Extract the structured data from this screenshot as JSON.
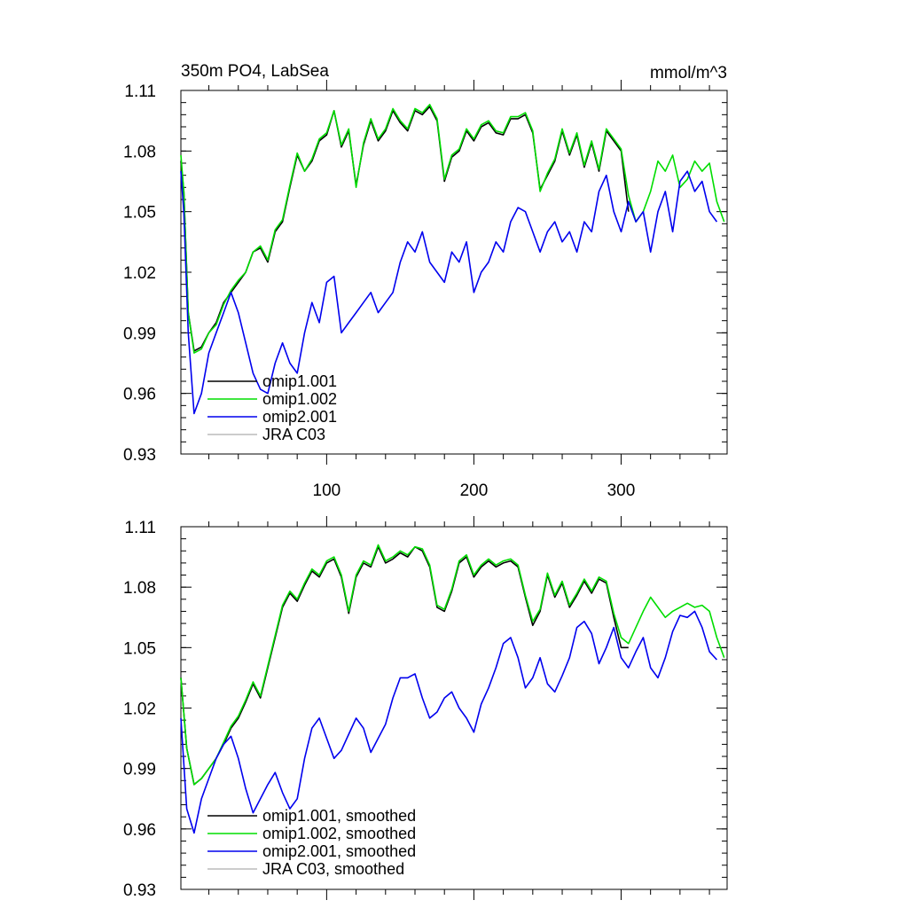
{
  "chart_data": [
    {
      "type": "line",
      "title": "350m PO4, LabSea",
      "units": "mmol/m^3",
      "xlim": [
        1,
        372
      ],
      "ylim": [
        0.93,
        1.11
      ],
      "xticks": [
        100,
        200,
        300
      ],
      "xtick_labels": [
        "100",
        "200",
        "300"
      ],
      "yticks": [
        0.93,
        0.96,
        0.99,
        1.02,
        1.05,
        1.08,
        1.11
      ],
      "ytick_labels": [
        "0.93",
        "0.96",
        "0.99",
        "1.02",
        "1.05",
        "1.08",
        "1.11"
      ],
      "legend_position": "bottom-left",
      "series": [
        {
          "name": "omip1.001",
          "color": "#000000",
          "x": [
            1,
            3,
            6,
            10,
            15,
            20,
            25,
            30,
            35,
            40,
            45,
            50,
            55,
            60,
            65,
            70,
            75,
            80,
            85,
            90,
            95,
            100,
            105,
            110,
            115,
            120,
            125,
            130,
            135,
            140,
            145,
            150,
            155,
            160,
            165,
            170,
            175,
            180,
            185,
            190,
            195,
            200,
            205,
            210,
            215,
            220,
            225,
            230,
            235,
            240,
            245,
            250,
            255,
            260,
            265,
            270,
            275,
            280,
            285,
            290,
            295,
            300,
            305
          ],
          "y": [
            1.075,
            1.06,
            1.0,
            0.981,
            0.983,
            0.99,
            0.995,
            1.005,
            1.01,
            1.015,
            1.02,
            1.03,
            1.032,
            1.025,
            1.04,
            1.045,
            1.062,
            1.078,
            1.07,
            1.075,
            1.085,
            1.088,
            1.1,
            1.082,
            1.09,
            1.063,
            1.083,
            1.095,
            1.085,
            1.09,
            1.1,
            1.094,
            1.09,
            1.1,
            1.098,
            1.102,
            1.095,
            1.065,
            1.077,
            1.08,
            1.09,
            1.085,
            1.092,
            1.094,
            1.089,
            1.088,
            1.096,
            1.096,
            1.098,
            1.089,
            1.061,
            1.068,
            1.075,
            1.09,
            1.078,
            1.088,
            1.072,
            1.084,
            1.07,
            1.09,
            1.085,
            1.08,
            1.05
          ]
        },
        {
          "name": "omip1.002",
          "color": "#00dd00",
          "x": [
            1,
            3,
            6,
            10,
            15,
            20,
            25,
            30,
            35,
            40,
            45,
            50,
            55,
            60,
            65,
            70,
            75,
            80,
            85,
            90,
            95,
            100,
            105,
            110,
            115,
            120,
            125,
            130,
            135,
            140,
            145,
            150,
            155,
            160,
            165,
            170,
            175,
            180,
            185,
            190,
            195,
            200,
            205,
            210,
            215,
            220,
            225,
            230,
            235,
            240,
            245,
            250,
            255,
            260,
            265,
            270,
            275,
            280,
            285,
            290,
            295,
            300,
            305,
            310,
            315,
            320,
            325,
            330,
            335,
            340,
            345,
            350,
            355,
            360,
            365,
            370
          ],
          "y": [
            1.078,
            1.06,
            1.0,
            0.98,
            0.982,
            0.99,
            0.994,
            1.004,
            1.011,
            1.016,
            1.02,
            1.03,
            1.033,
            1.026,
            1.041,
            1.046,
            1.063,
            1.079,
            1.07,
            1.076,
            1.086,
            1.089,
            1.1,
            1.083,
            1.091,
            1.062,
            1.084,
            1.096,
            1.086,
            1.091,
            1.101,
            1.095,
            1.091,
            1.101,
            1.099,
            1.103,
            1.096,
            1.066,
            1.078,
            1.081,
            1.091,
            1.086,
            1.093,
            1.095,
            1.09,
            1.089,
            1.097,
            1.097,
            1.099,
            1.09,
            1.06,
            1.069,
            1.076,
            1.091,
            1.079,
            1.089,
            1.073,
            1.085,
            1.071,
            1.091,
            1.086,
            1.081,
            1.058,
            1.045,
            1.05,
            1.06,
            1.075,
            1.07,
            1.078,
            1.062,
            1.066,
            1.075,
            1.07,
            1.074,
            1.055,
            1.045
          ]
        },
        {
          "name": "omip2.001",
          "color": "#0000ee",
          "x": [
            1,
            3,
            6,
            10,
            15,
            20,
            25,
            30,
            35,
            40,
            45,
            50,
            55,
            60,
            65,
            70,
            75,
            80,
            85,
            90,
            95,
            100,
            105,
            110,
            115,
            120,
            125,
            130,
            135,
            140,
            145,
            150,
            155,
            160,
            165,
            170,
            175,
            180,
            185,
            190,
            195,
            200,
            205,
            210,
            215,
            220,
            225,
            230,
            235,
            240,
            245,
            250,
            255,
            260,
            265,
            270,
            275,
            280,
            285,
            290,
            295,
            300,
            305,
            310,
            315,
            320,
            325,
            330,
            335,
            340,
            345,
            350,
            355,
            360,
            365
          ],
          "y": [
            1.07,
            1.05,
            0.99,
            0.95,
            0.96,
            0.98,
            0.99,
            1.0,
            1.01,
            1.0,
            0.985,
            0.97,
            0.962,
            0.96,
            0.975,
            0.985,
            0.975,
            0.97,
            0.99,
            1.005,
            0.995,
            1.015,
            1.018,
            0.99,
            0.995,
            1.0,
            1.005,
            1.01,
            1.0,
            1.005,
            1.01,
            1.025,
            1.035,
            1.03,
            1.04,
            1.025,
            1.02,
            1.015,
            1.03,
            1.025,
            1.035,
            1.01,
            1.02,
            1.025,
            1.035,
            1.03,
            1.045,
            1.052,
            1.05,
            1.04,
            1.03,
            1.04,
            1.045,
            1.035,
            1.04,
            1.03,
            1.045,
            1.04,
            1.06,
            1.068,
            1.05,
            1.04,
            1.055,
            1.045,
            1.05,
            1.03,
            1.05,
            1.06,
            1.04,
            1.065,
            1.07,
            1.06,
            1.065,
            1.05,
            1.045
          ]
        },
        {
          "name": "JRA C03",
          "color": "#bbbbbb",
          "x": [],
          "y": []
        }
      ]
    },
    {
      "type": "line",
      "title": "",
      "units": "",
      "xlim": [
        1,
        372
      ],
      "ylim": [
        0.93,
        1.11
      ],
      "xticks": [
        100,
        200,
        300
      ],
      "xtick_labels": [],
      "yticks": [
        0.93,
        0.96,
        0.99,
        1.02,
        1.05,
        1.08,
        1.11
      ],
      "ytick_labels": [
        "0.93",
        "0.96",
        "0.99",
        "1.02",
        "1.05",
        "1.08",
        "1.11"
      ],
      "legend_position": "bottom-left",
      "series": [
        {
          "name": "omip1.001, smoothed",
          "color": "#000000",
          "x": [
            1,
            5,
            10,
            15,
            20,
            25,
            30,
            35,
            40,
            45,
            50,
            55,
            60,
            65,
            70,
            75,
            80,
            85,
            90,
            95,
            100,
            105,
            110,
            115,
            120,
            125,
            130,
            135,
            140,
            145,
            150,
            155,
            160,
            165,
            170,
            175,
            180,
            185,
            190,
            195,
            200,
            205,
            210,
            215,
            220,
            225,
            230,
            235,
            240,
            245,
            250,
            255,
            260,
            265,
            270,
            275,
            280,
            285,
            290,
            295,
            300,
            305
          ],
          "y": [
            1.035,
            1.0,
            0.982,
            0.985,
            0.99,
            0.995,
            1.002,
            1.01,
            1.015,
            1.023,
            1.032,
            1.025,
            1.04,
            1.055,
            1.07,
            1.077,
            1.073,
            1.081,
            1.088,
            1.085,
            1.092,
            1.094,
            1.085,
            1.067,
            1.085,
            1.092,
            1.09,
            1.1,
            1.092,
            1.094,
            1.097,
            1.095,
            1.1,
            1.098,
            1.09,
            1.07,
            1.068,
            1.078,
            1.092,
            1.095,
            1.085,
            1.09,
            1.093,
            1.09,
            1.092,
            1.093,
            1.09,
            1.075,
            1.061,
            1.068,
            1.086,
            1.075,
            1.082,
            1.07,
            1.076,
            1.083,
            1.077,
            1.084,
            1.082,
            1.065,
            1.05,
            1.05
          ]
        },
        {
          "name": "omip1.002, smoothed",
          "color": "#00dd00",
          "x": [
            1,
            5,
            10,
            15,
            20,
            25,
            30,
            35,
            40,
            45,
            50,
            55,
            60,
            65,
            70,
            75,
            80,
            85,
            90,
            95,
            100,
            105,
            110,
            115,
            120,
            125,
            130,
            135,
            140,
            145,
            150,
            155,
            160,
            165,
            170,
            175,
            180,
            185,
            190,
            195,
            200,
            205,
            210,
            215,
            220,
            225,
            230,
            235,
            240,
            245,
            250,
            255,
            260,
            265,
            270,
            275,
            280,
            285,
            290,
            295,
            300,
            305,
            310,
            315,
            320,
            325,
            330,
            335,
            340,
            345,
            350,
            355,
            360,
            365,
            370
          ],
          "y": [
            1.035,
            1.0,
            0.982,
            0.985,
            0.99,
            0.995,
            1.003,
            1.011,
            1.016,
            1.024,
            1.033,
            1.026,
            1.041,
            1.056,
            1.071,
            1.078,
            1.074,
            1.082,
            1.089,
            1.086,
            1.093,
            1.095,
            1.086,
            1.068,
            1.086,
            1.093,
            1.091,
            1.101,
            1.093,
            1.095,
            1.098,
            1.096,
            1.1,
            1.099,
            1.091,
            1.071,
            1.069,
            1.079,
            1.093,
            1.096,
            1.086,
            1.091,
            1.094,
            1.091,
            1.093,
            1.094,
            1.091,
            1.076,
            1.063,
            1.069,
            1.087,
            1.076,
            1.083,
            1.071,
            1.077,
            1.084,
            1.078,
            1.085,
            1.083,
            1.067,
            1.055,
            1.052,
            1.06,
            1.068,
            1.075,
            1.07,
            1.065,
            1.068,
            1.07,
            1.072,
            1.07,
            1.071,
            1.068,
            1.055,
            1.045
          ]
        },
        {
          "name": "omip2.001, smoothed",
          "color": "#0000ee",
          "x": [
            1,
            5,
            10,
            15,
            20,
            25,
            30,
            35,
            40,
            45,
            50,
            55,
            60,
            65,
            70,
            75,
            80,
            85,
            90,
            95,
            100,
            105,
            110,
            115,
            120,
            125,
            130,
            135,
            140,
            145,
            150,
            155,
            160,
            165,
            170,
            175,
            180,
            185,
            190,
            195,
            200,
            205,
            210,
            215,
            220,
            225,
            230,
            235,
            240,
            245,
            250,
            255,
            260,
            265,
            270,
            275,
            280,
            285,
            290,
            295,
            300,
            305,
            310,
            315,
            320,
            325,
            330,
            335,
            340,
            345,
            350,
            355,
            360,
            365
          ],
          "y": [
            1.015,
            0.97,
            0.958,
            0.975,
            0.985,
            0.995,
            1.002,
            1.006,
            0.995,
            0.98,
            0.968,
            0.975,
            0.982,
            0.988,
            0.978,
            0.97,
            0.975,
            0.995,
            1.01,
            1.015,
            1.005,
            0.995,
            0.999,
            1.007,
            1.015,
            1.01,
            0.998,
            1.005,
            1.012,
            1.025,
            1.035,
            1.035,
            1.037,
            1.025,
            1.015,
            1.018,
            1.025,
            1.028,
            1.02,
            1.015,
            1.008,
            1.022,
            1.03,
            1.04,
            1.052,
            1.055,
            1.045,
            1.03,
            1.035,
            1.045,
            1.032,
            1.028,
            1.036,
            1.045,
            1.06,
            1.063,
            1.057,
            1.042,
            1.05,
            1.06,
            1.045,
            1.04,
            1.048,
            1.055,
            1.04,
            1.035,
            1.045,
            1.058,
            1.066,
            1.065,
            1.068,
            1.06,
            1.048,
            1.044
          ]
        },
        {
          "name": "JRA C03, smoothed",
          "color": "#bbbbbb",
          "x": [],
          "y": []
        }
      ]
    }
  ]
}
